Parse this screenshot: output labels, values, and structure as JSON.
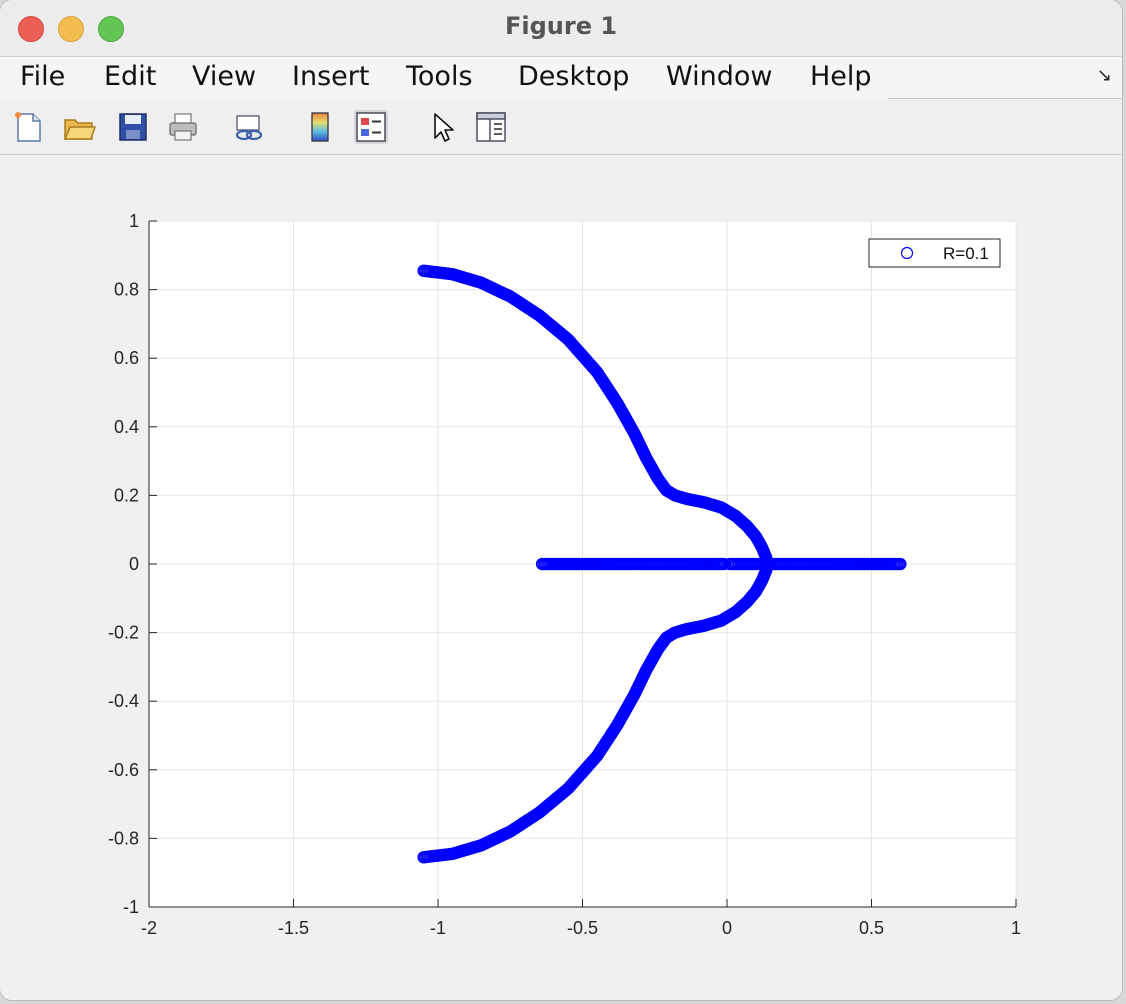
{
  "window": {
    "title": "Figure 1"
  },
  "menu": {
    "items": [
      "File",
      "Edit",
      "View",
      "Insert",
      "Tools",
      "Desktop",
      "Window",
      "Help"
    ]
  },
  "toolbar": {
    "icons": [
      "new-figure-icon",
      "open-file-icon",
      "save-icon",
      "print-icon",
      "link-plot-icon",
      "insert-colorbar-icon",
      "insert-legend-icon",
      "edit-plot-icon",
      "property-inspector-icon"
    ]
  },
  "chart_data": {
    "type": "scatter",
    "title": "",
    "xlabel": "",
    "ylabel": "",
    "xlim": [
      -2,
      1
    ],
    "ylim": [
      -1,
      1
    ],
    "xticks": [
      -2,
      -1.5,
      -1,
      -0.5,
      0,
      0.5,
      1
    ],
    "yticks": [
      -1,
      -0.8,
      -0.6,
      -0.4,
      -0.2,
      0,
      0.2,
      0.4,
      0.6,
      0.8,
      1
    ],
    "xtick_labels": [
      "-2",
      "-1.5",
      "-1",
      "-0.5",
      "0",
      "0.5",
      "1"
    ],
    "ytick_labels": [
      "-1",
      "-0.8",
      "-0.6",
      "-0.4",
      "-0.2",
      "0",
      "0.2",
      "0.4",
      "0.6",
      "0.8",
      "1"
    ],
    "grid": true,
    "legend_position": "top-right",
    "marker": "circle",
    "color": "#0000ff",
    "series": [
      {
        "name": "R=0.1",
        "branches": [
          {
            "x": [
              -1.05,
              -0.95,
              -0.85,
              -0.75,
              -0.65,
              -0.55,
              -0.45,
              -0.38,
              -0.32,
              -0.28,
              -0.24,
              -0.21,
              -0.18,
              -0.14,
              -0.08,
              -0.02,
              0.03,
              0.07,
              0.1,
              0.12,
              0.135,
              0.14
            ],
            "y": [
              0.855,
              0.845,
              0.82,
              0.78,
              0.725,
              0.655,
              0.56,
              0.47,
              0.38,
              0.31,
              0.25,
              0.215,
              0.2,
              0.19,
              0.18,
              0.165,
              0.14,
              0.11,
              0.08,
              0.05,
              0.02,
              0.0
            ]
          },
          {
            "x": [
              -1.05,
              -0.95,
              -0.85,
              -0.75,
              -0.65,
              -0.55,
              -0.45,
              -0.38,
              -0.32,
              -0.28,
              -0.24,
              -0.21,
              -0.18,
              -0.14,
              -0.08,
              -0.02,
              0.03,
              0.07,
              0.1,
              0.12,
              0.135,
              0.14
            ],
            "y": [
              -0.855,
              -0.845,
              -0.82,
              -0.78,
              -0.725,
              -0.655,
              -0.56,
              -0.47,
              -0.38,
              -0.31,
              -0.25,
              -0.215,
              -0.2,
              -0.19,
              -0.18,
              -0.165,
              -0.14,
              -0.11,
              -0.08,
              -0.05,
              -0.02,
              0.0
            ]
          },
          {
            "x": [
              -0.64,
              -0.5,
              -0.35,
              -0.2,
              -0.05,
              -0.01
            ],
            "y": [
              0,
              0,
              0,
              0,
              0,
              0
            ]
          },
          {
            "x": [
              0.01,
              0.15,
              0.3,
              0.45,
              0.6
            ],
            "y": [
              0,
              0,
              0,
              0,
              0
            ]
          }
        ]
      }
    ]
  }
}
